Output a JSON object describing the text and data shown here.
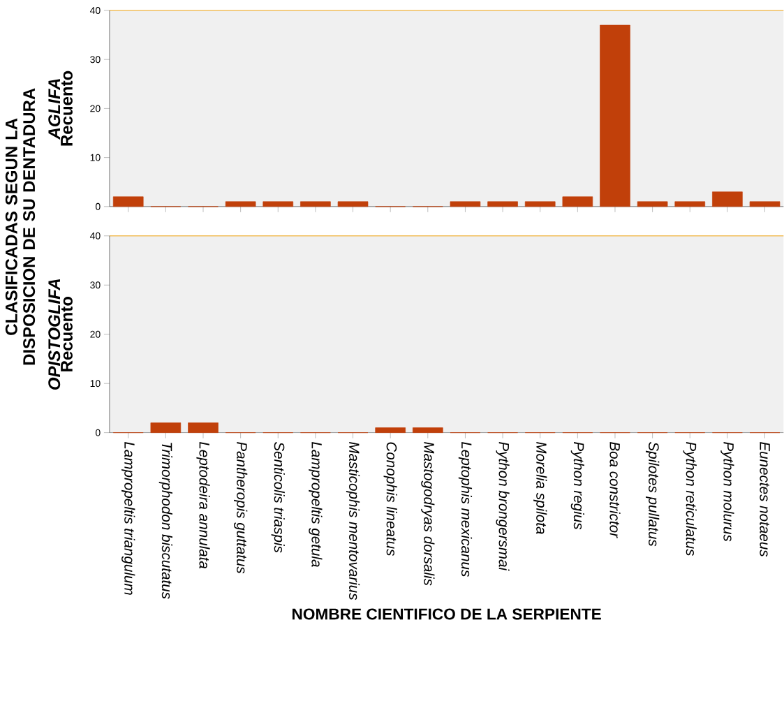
{
  "chart_data": [
    {
      "type": "bar",
      "title": "AGLIFA",
      "ylabel": "Recuento",
      "annotations": [
        "CLASIFICADAS SEGUN LA DISPOSICION DE SU DENTADURA"
      ],
      "categories": [
        null,
        null,
        null,
        null,
        null,
        null,
        null,
        null,
        null,
        null,
        null,
        null,
        null,
        null,
        null,
        null,
        null,
        null
      ],
      "series": [
        {
          "color": "#c1400a",
          "values": [
            2,
            0,
            0,
            1,
            1,
            1,
            1,
            0,
            0,
            1,
            1,
            1,
            2,
            37,
            1,
            1,
            3,
            1
          ]
        }
      ],
      "ylim": [
        0,
        40
      ],
      "yticks": [
        0,
        10,
        20,
        30,
        40
      ],
      "tick_labels": "y"
    },
    {
      "type": "bar",
      "title": "OPISTOGLIFA",
      "ylabel": "Recuento",
      "xlabel": "NOMBRE CIENTIFICO DE LA SERPIENTE",
      "categories": [
        "Lampropeltis triangulum",
        "Trimorphodon biscutatus",
        "Leptodeira annulata",
        "Pantheropis guttatus",
        "Senticolis triaspis",
        "Lampropeltis getula",
        "Masticophis mentovarius",
        "Conophis lineatus",
        "Mastogodryas dorsalis",
        "Leptophis mexicanus",
        "Python brongersmai",
        "Morelia spilota",
        "Python regius",
        "Boa constrictor",
        "Spilotes pullatus",
        "Python reticulatus",
        "Python molurus",
        "Eunectes notaeus"
      ],
      "series": [
        {
          "color": "#c1400a",
          "values": [
            0,
            2,
            2,
            0,
            0,
            0,
            0,
            1,
            1,
            0,
            0,
            0,
            0,
            0,
            0,
            0,
            0,
            0
          ]
        }
      ],
      "ylim": [
        0,
        40
      ],
      "yticks": [
        0,
        10,
        20,
        30,
        40
      ]
    }
  ]
}
